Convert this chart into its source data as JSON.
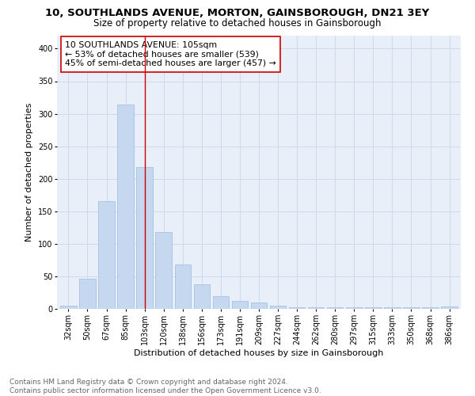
{
  "title": "10, SOUTHLANDS AVENUE, MORTON, GAINSBOROUGH, DN21 3EY",
  "subtitle": "Size of property relative to detached houses in Gainsborough",
  "xlabel": "Distribution of detached houses by size in Gainsborough",
  "ylabel": "Number of detached properties",
  "categories": [
    "32sqm",
    "50sqm",
    "67sqm",
    "85sqm",
    "103sqm",
    "120sqm",
    "138sqm",
    "156sqm",
    "173sqm",
    "191sqm",
    "209sqm",
    "227sqm",
    "244sqm",
    "262sqm",
    "280sqm",
    "297sqm",
    "315sqm",
    "333sqm",
    "350sqm",
    "368sqm",
    "386sqm"
  ],
  "values": [
    5,
    46,
    165,
    314,
    218,
    118,
    68,
    38,
    19,
    12,
    10,
    5,
    3,
    2,
    2,
    3,
    2,
    2,
    2,
    2,
    4
  ],
  "bar_color": "#c5d8ef",
  "bar_edge_color": "#9bbcdc",
  "grid_color": "#cddaeb",
  "bg_color": "#e8eff8",
  "vline_x": 4,
  "vline_color": "#cc0000",
  "annotation_text": "10 SOUTHLANDS AVENUE: 105sqm\n← 53% of detached houses are smaller (539)\n45% of semi-detached houses are larger (457) →",
  "annotation_box_color": "#ffffff",
  "annotation_box_edge": "#cc0000",
  "footer_text": "Contains HM Land Registry data © Crown copyright and database right 2024.\nContains public sector information licensed under the Open Government Licence v3.0.",
  "ylim": [
    0,
    420
  ],
  "yticks": [
    0,
    50,
    100,
    150,
    200,
    250,
    300,
    350,
    400
  ],
  "title_fontsize": 9.5,
  "subtitle_fontsize": 8.5,
  "axis_label_fontsize": 8,
  "tick_fontsize": 7,
  "annotation_fontsize": 7.8,
  "footer_fontsize": 6.5
}
